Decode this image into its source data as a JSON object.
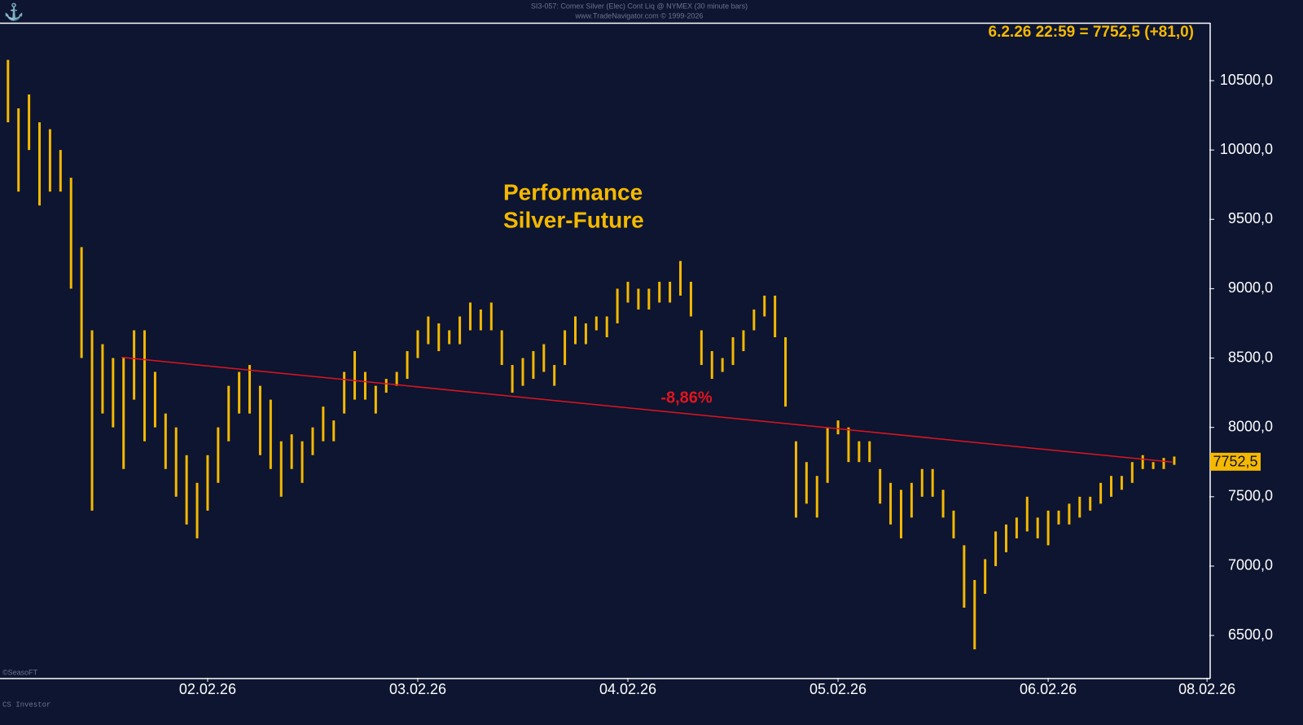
{
  "chart_data": {
    "type": "ohlc",
    "header": [
      "SI3-057: Comex Silver (Elec) Cont Liq @ NYMEX (30 minute bars)",
      "www.TradeNavigator.com © 1999-2026"
    ],
    "quote": "6.2.26 22:59 = 7752,5 (+81,0)",
    "title": [
      "Performance",
      "Silver-Future"
    ],
    "annotation": "-8,86%",
    "footer": [
      "©SeasoFT",
      "CS Investor"
    ],
    "color": "#f5b800",
    "x": [
      -0.95,
      -0.9,
      -0.85,
      -0.8,
      -0.75,
      -0.7,
      -0.65,
      -0.6,
      -0.55,
      -0.5,
      -0.45,
      -0.4,
      -0.35,
      -0.3,
      -0.25,
      -0.2,
      -0.15,
      -0.1,
      -0.05,
      0,
      0.05,
      0.1,
      0.15,
      0.2,
      0.25,
      0.3,
      0.35,
      0.4,
      0.45,
      0.5,
      0.55,
      0.6,
      0.65,
      0.7,
      0.75,
      0.8,
      0.85,
      0.9,
      0.95,
      1,
      1.05,
      1.1,
      1.15,
      1.2,
      1.25,
      1.3,
      1.35,
      1.4,
      1.45,
      1.5,
      1.55,
      1.6,
      1.65,
      1.7,
      1.75,
      1.8,
      1.85,
      1.9,
      1.95,
      2,
      2.05,
      2.1,
      2.15,
      2.2,
      2.25,
      2.3,
      2.35,
      2.4,
      2.45,
      2.5,
      2.55,
      2.6,
      2.65,
      2.7,
      2.75,
      2.8,
      2.85,
      2.9,
      2.95,
      3,
      3.05,
      3.1,
      3.15,
      3.2,
      3.25,
      3.3,
      3.35,
      3.4,
      3.45,
      3.5,
      3.55,
      3.6,
      3.65,
      3.7,
      3.75,
      3.8,
      3.85,
      3.9,
      3.95,
      4,
      4.05,
      4.1,
      4.15,
      4.2,
      4.25,
      4.3,
      4.35,
      4.4,
      4.45,
      4.5,
      4.55,
      4.6
    ],
    "high": [
      10650,
      10300,
      10400,
      10200,
      10150,
      10000,
      9800,
      9300,
      8700,
      8600,
      8500,
      8500,
      8700,
      8700,
      8400,
      8100,
      8000,
      7800,
      7600,
      7800,
      8000,
      8300,
      8400,
      8450,
      8300,
      8200,
      7900,
      7950,
      7900,
      8000,
      8150,
      8050,
      8400,
      8550,
      8400,
      8300,
      8350,
      8400,
      8550,
      8700,
      8800,
      8750,
      8700,
      8800,
      8900,
      8850,
      8900,
      8700,
      8450,
      8500,
      8550,
      8600,
      8450,
      8700,
      8800,
      8750,
      8800,
      8800,
      9000,
      9050,
      9000,
      9000,
      9050,
      9050,
      9200,
      9050,
      8700,
      8550,
      8500,
      8650,
      8700,
      8850,
      8950,
      8950,
      8650,
      7900,
      7750,
      7650,
      8000,
      8050,
      8000,
      7900,
      7900,
      7700,
      7600,
      7550,
      7600,
      7700,
      7700,
      7550,
      7400,
      7150,
      6900,
      7050,
      7250,
      7300,
      7350,
      7500,
      7350,
      7400,
      7400,
      7450,
      7500,
      7500,
      7600,
      7650,
      7650,
      7750,
      7800,
      7750,
      7780,
      7790
    ],
    "low": [
      10200,
      9700,
      10000,
      9600,
      9700,
      9700,
      9000,
      8500,
      7400,
      8100,
      8000,
      7700,
      8200,
      7900,
      8000,
      7700,
      7500,
      7300,
      7200,
      7400,
      7600,
      7900,
      8100,
      8100,
      7800,
      7700,
      7500,
      7700,
      7600,
      7800,
      7900,
      7900,
      8100,
      8200,
      8200,
      8100,
      8250,
      8300,
      8350,
      8500,
      8600,
      8550,
      8600,
      8600,
      8700,
      8700,
      8700,
      8450,
      8250,
      8300,
      8350,
      8400,
      8300,
      8450,
      8600,
      8600,
      8700,
      8650,
      8750,
      8900,
      8850,
      8850,
      8900,
      8900,
      8950,
      8800,
      8450,
      8350,
      8400,
      8450,
      8550,
      8700,
      8800,
      8650,
      8150,
      7350,
      7450,
      7350,
      7600,
      7950,
      7750,
      7750,
      7750,
      7450,
      7300,
      7200,
      7350,
      7500,
      7500,
      7350,
      7200,
      6700,
      6400,
      6800,
      7000,
      7100,
      7200,
      7250,
      7200,
      7150,
      7300,
      7300,
      7350,
      7400,
      7450,
      7500,
      7550,
      7600,
      7700,
      7700,
      7700,
      7730
    ],
    "trendline": {
      "x": [
        -0.41,
        4.59
      ],
      "y": [
        8505,
        7750
      ],
      "color": "#e0141e"
    },
    "last_price": {
      "value": 7752.5,
      "label": "7752,5"
    },
    "xlim": [
      -0.988,
      4.767
    ],
    "xticks": [
      {
        "value": 0,
        "label": "02.02.26"
      },
      {
        "value": 1,
        "label": "03.02.26"
      },
      {
        "value": 2,
        "label": "04.02.26"
      },
      {
        "value": 3,
        "label": "05.02.26"
      },
      {
        "value": 4,
        "label": "06.02.26"
      },
      {
        "value": 4.756,
        "label": "08.02.26"
      }
    ],
    "ylim": [
      6195,
      10917
    ],
    "yticks": [
      {
        "value": 6500,
        "label": "6500,0"
      },
      {
        "value": 7000,
        "label": "7000,0"
      },
      {
        "value": 7500,
        "label": "7500,0"
      },
      {
        "value": 8000,
        "label": "8000,0"
      },
      {
        "value": 8500,
        "label": "8500,0"
      },
      {
        "value": 9000,
        "label": "9000,0"
      },
      {
        "value": 9500,
        "label": "9500,0"
      },
      {
        "value": 10000,
        "label": "10000,0"
      },
      {
        "value": 10500,
        "label": "10500,0"
      }
    ]
  }
}
